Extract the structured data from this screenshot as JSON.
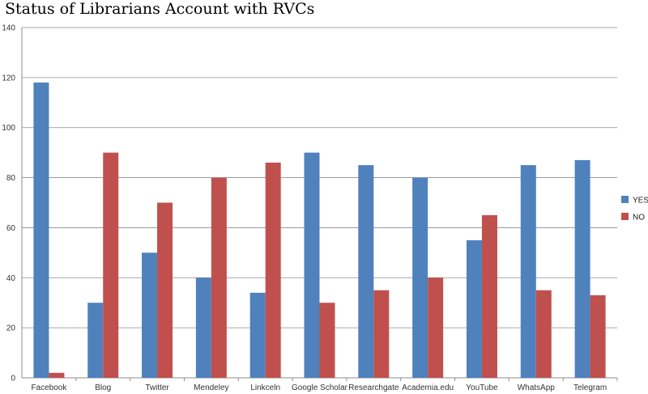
{
  "chart_data": {
    "type": "bar",
    "title": "Status of Librarians Account with RVCs",
    "categories": [
      "Facebook",
      "Blog",
      "Twitter",
      "Mendeley",
      "Linkceln",
      "Google Scholar",
      "Researchgate",
      "Academia.edu",
      "YouTube",
      "WhatsApp",
      "Telegram"
    ],
    "series": [
      {
        "name": "YES",
        "color": "#4F81BD",
        "values": [
          118,
          30,
          50,
          40,
          34,
          90,
          85,
          80,
          55,
          85,
          87
        ]
      },
      {
        "name": "NO",
        "color": "#C0504D",
        "values": [
          2,
          90,
          70,
          80,
          86,
          30,
          35,
          40,
          65,
          35,
          33
        ]
      }
    ],
    "ylim": [
      0,
      140
    ],
    "yticks": [
      0,
      20,
      40,
      60,
      80,
      100,
      120,
      140
    ],
    "grid": true,
    "legend": "right"
  }
}
